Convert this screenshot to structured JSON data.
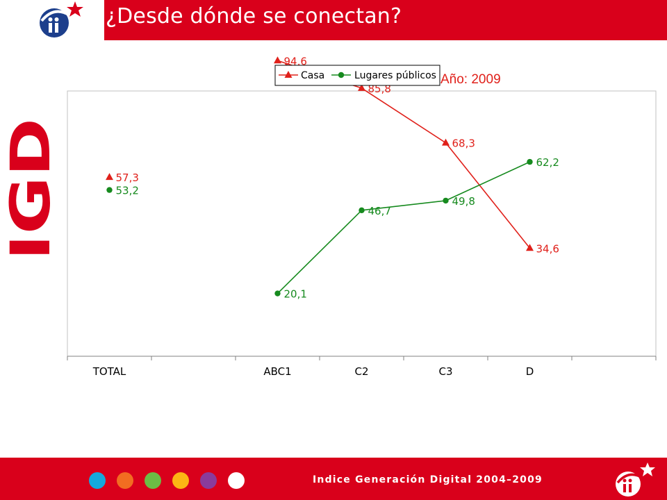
{
  "header": {
    "title": "¿Desde dónde se conectan?"
  },
  "side_logo_text": "IGD",
  "year_label": "Año: 2009",
  "footer": {
    "text": "Indice Generación Digital 2004–2009",
    "dot_colors": [
      "#15a9dc",
      "#f26d21",
      "#6cbd45",
      "#fcb514",
      "#8a3b9b",
      "#ffffff"
    ]
  },
  "colors": {
    "brand_red": "#d9001b",
    "casa": "#e0201a",
    "lugares": "#168a1e"
  },
  "chart_data": {
    "type": "line",
    "categories": [
      "TOTAL",
      "",
      "ABC1",
      "C2",
      "C3",
      "D",
      ""
    ],
    "ylim": [
      0,
      100
    ],
    "grid": false,
    "legend_position": "top-right",
    "series": [
      {
        "name": "Casa",
        "marker": "triangle",
        "values": [
          57.3,
          null,
          94.6,
          85.8,
          68.3,
          34.6,
          null
        ],
        "labels": [
          "57,3",
          "",
          "94,6",
          "85,8",
          "68,3",
          "34,6",
          ""
        ]
      },
      {
        "name": "Lugares públicos",
        "marker": "circle",
        "values": [
          53.2,
          null,
          20.1,
          46.7,
          49.8,
          62.2,
          null
        ],
        "labels": [
          "53,2",
          "",
          "20,1",
          "46,7",
          "49,8",
          "62,2",
          ""
        ]
      }
    ]
  }
}
